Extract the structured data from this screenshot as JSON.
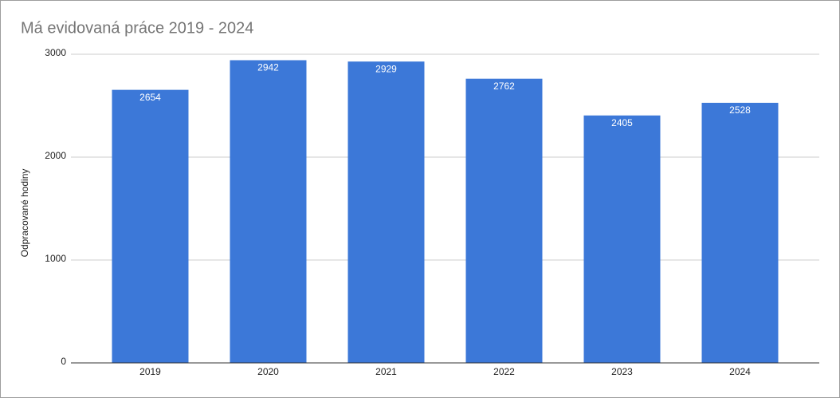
{
  "chart_data": {
    "type": "bar",
    "title": "Má evidovaná práce 2019 - 2024",
    "y_label": "Odpracované hodiny",
    "categories": [
      "2019",
      "2020",
      "2021",
      "2022",
      "2023",
      "2024"
    ],
    "values": [
      2654,
      2942,
      2929,
      2762,
      2405,
      2528
    ],
    "color": "#3c78d8",
    "ylim": [
      0,
      3000
    ],
    "yticks": [
      0,
      1000,
      2000,
      3000
    ],
    "grid": true,
    "data_labels": true
  }
}
